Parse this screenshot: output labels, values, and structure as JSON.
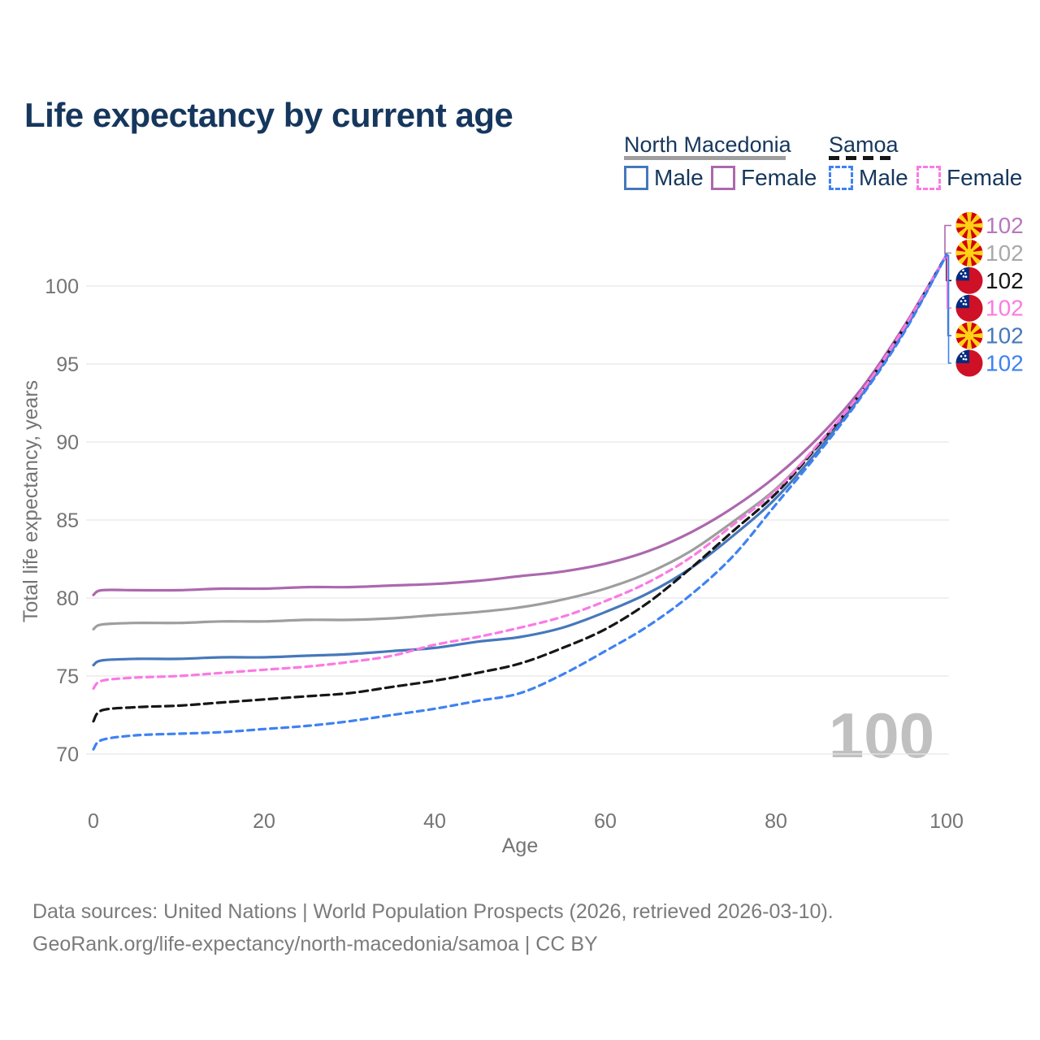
{
  "title": "Life expectancy by current age",
  "legend": {
    "groups": [
      {
        "name": "North Macedonia",
        "underline_style": "solid",
        "underline_color": "#9e9e9e",
        "items": [
          {
            "label": "Male",
            "color": "#4678bb",
            "dashed": false
          },
          {
            "label": "Female",
            "color": "#ac68ae",
            "dashed": false
          }
        ]
      },
      {
        "name": "Samoa",
        "underline_style": "dashed",
        "underline_color": "#161616",
        "items": [
          {
            "label": "Male",
            "color": "#3e82f2",
            "dashed": true
          },
          {
            "label": "Female",
            "color": "#fb7ae3",
            "dashed": true
          }
        ]
      }
    ]
  },
  "axes": {
    "x": {
      "label": "Age",
      "ticks": [
        0,
        20,
        40,
        60,
        80,
        100
      ]
    },
    "y": {
      "label": "Total life expectancy, years",
      "ticks": [
        70,
        75,
        80,
        85,
        90,
        95,
        100
      ]
    }
  },
  "watermark": "100",
  "footer": {
    "line1": "Data sources: United Nations | World Population Prospects (2026, retrieved 2026-03-10).",
    "line2": "GeoRank.org/life-expectancy/north-macedonia/samoa | CC BY"
  },
  "chart_data": {
    "type": "line",
    "title": "Life expectancy by current age",
    "xlabel": "Age",
    "ylabel": "Total life expectancy, years",
    "xlim": [
      0,
      100
    ],
    "ylim": [
      69,
      103
    ],
    "grid": "horizontal",
    "x": [
      0,
      1,
      5,
      10,
      15,
      20,
      25,
      30,
      35,
      40,
      45,
      50,
      55,
      60,
      65,
      70,
      75,
      80,
      85,
      90,
      95,
      100
    ],
    "series": [
      {
        "id": "nm-all",
        "country": "North Macedonia",
        "legend_label": "North Macedonia",
        "line_style": "solid",
        "color": "#9e9e9e",
        "label_color": "#a9a9a9",
        "flag": "north-macedonia",
        "end_label": "102",
        "end_label_row": 1,
        "values": [
          78.0,
          78.3,
          78.4,
          78.4,
          78.5,
          78.5,
          78.6,
          78.6,
          78.7,
          78.9,
          79.1,
          79.4,
          79.9,
          80.6,
          81.6,
          83.0,
          84.9,
          87.0,
          89.8,
          93.0,
          97.2,
          102
        ]
      },
      {
        "id": "nm-female",
        "country": "North Macedonia",
        "legend_label": "Female",
        "line_style": "solid",
        "color": "#ac68ae",
        "label_color": "#b878bc",
        "flag": "north-macedonia",
        "end_label": "102",
        "end_label_row": 0,
        "values": [
          80.2,
          80.5,
          80.5,
          80.5,
          80.6,
          80.6,
          80.7,
          80.7,
          80.8,
          80.9,
          81.1,
          81.4,
          81.7,
          82.2,
          83.0,
          84.2,
          85.8,
          87.8,
          90.3,
          93.4,
          97.4,
          102
        ]
      },
      {
        "id": "nm-male",
        "country": "North Macedonia",
        "legend_label": "Male",
        "line_style": "solid",
        "color": "#4678bb",
        "label_color": "#4678bb",
        "flag": "north-macedonia",
        "end_label": "102",
        "end_label_row": 4,
        "values": [
          75.7,
          76.0,
          76.1,
          76.1,
          76.2,
          76.2,
          76.3,
          76.4,
          76.6,
          76.8,
          77.2,
          77.5,
          78.1,
          79.1,
          80.3,
          81.9,
          84.0,
          86.4,
          89.5,
          93.0,
          97.1,
          102
        ]
      },
      {
        "id": "samoa-all",
        "country": "Samoa",
        "legend_label": "Samoa",
        "line_style": "dashed",
        "color": "#161616",
        "label_color": "#161616",
        "flag": "samoa",
        "end_label": "102",
        "end_label_row": 2,
        "values": [
          72.1,
          72.8,
          73.0,
          73.1,
          73.3,
          73.5,
          73.7,
          73.9,
          74.3,
          74.7,
          75.2,
          75.8,
          76.8,
          78.0,
          79.7,
          81.9,
          84.3,
          86.7,
          89.8,
          93.2,
          97.3,
          102
        ]
      },
      {
        "id": "samoa-female",
        "country": "Samoa",
        "legend_label": "Female",
        "line_style": "dashed",
        "color": "#fb7ae3",
        "label_color": "#fb7ae3",
        "flag": "samoa",
        "end_label": "102",
        "end_label_row": 3,
        "values": [
          74.2,
          74.7,
          74.9,
          75.0,
          75.2,
          75.4,
          75.6,
          75.9,
          76.3,
          77.0,
          77.5,
          78.1,
          78.8,
          79.8,
          81.0,
          82.6,
          84.7,
          86.9,
          89.9,
          93.2,
          97.3,
          102
        ]
      },
      {
        "id": "samoa-male",
        "country": "Samoa",
        "legend_label": "Male",
        "line_style": "dashed",
        "color": "#3e82f2",
        "label_color": "#3e82f2",
        "flag": "samoa",
        "end_label": "102",
        "end_label_row": 5,
        "values": [
          70.3,
          70.9,
          71.2,
          71.3,
          71.4,
          71.6,
          71.8,
          72.1,
          72.5,
          72.9,
          73.4,
          73.9,
          75.1,
          76.6,
          78.2,
          80.2,
          82.7,
          86.0,
          89.3,
          92.9,
          97.0,
          102
        ]
      }
    ]
  }
}
